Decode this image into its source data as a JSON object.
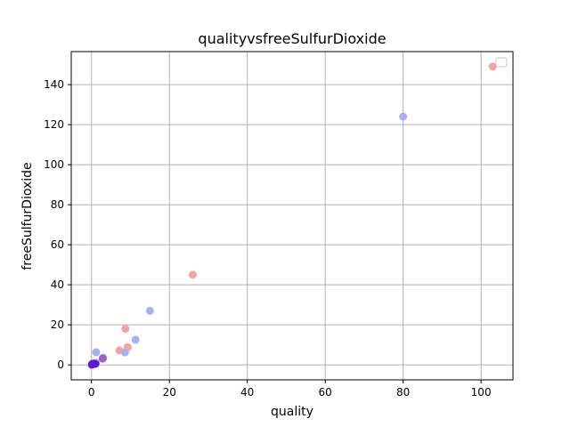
{
  "chart_data": {
    "type": "scatter",
    "title": "qualityvsfreeSulfurDioxide",
    "xlabel": "quality",
    "ylabel": "freeSulfurDioxide",
    "xlim": [
      -5.2,
      108.2
    ],
    "ylim": [
      -7.5,
      156.5
    ],
    "xticks": [
      0,
      20,
      40,
      60,
      80,
      100
    ],
    "yticks": [
      0,
      20,
      40,
      60,
      80,
      100,
      120,
      140
    ],
    "grid": true,
    "legend": {
      "placement": "top-right",
      "entries": []
    },
    "series": [
      {
        "color": "#f4a3a3",
        "x": [
          103,
          26,
          8.7,
          9.3,
          7.2,
          0.2,
          0.6,
          2.8
        ],
        "y": [
          149,
          45,
          18,
          8.8,
          7.2,
          0.3,
          0.4,
          3
        ]
      },
      {
        "color": "#aab0f5",
        "x": [
          80,
          15,
          11.3,
          8.6,
          1.2,
          0.3,
          1.1,
          3
        ],
        "y": [
          124,
          27,
          12.5,
          6.2,
          6.3,
          0.2,
          1,
          3.5
        ]
      },
      {
        "color": "#9b63c9",
        "x": [
          2.9
        ],
        "y": [
          3.2
        ]
      },
      {
        "color": "#5a1bd9",
        "x": [
          0.1,
          0.5,
          1.0,
          0.2
        ],
        "y": [
          0.1,
          0.6,
          0.5,
          0.5
        ]
      }
    ]
  }
}
